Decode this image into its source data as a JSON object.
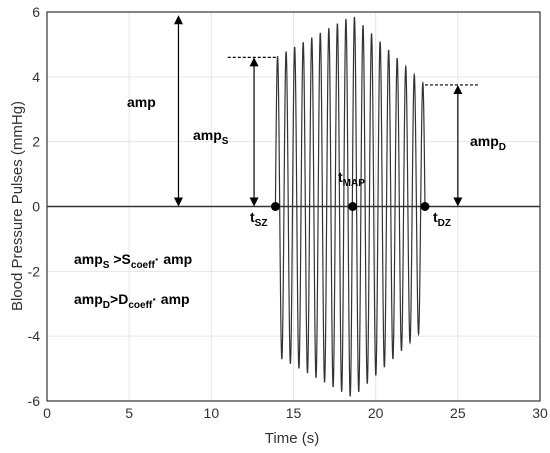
{
  "chart_data": {
    "type": "line",
    "title": "",
    "xlabel": "Time (s)",
    "ylabel": "Blood Pressure Pulses (mmHg)",
    "xlim": [
      0,
      30
    ],
    "ylim": [
      -6,
      6
    ],
    "x_ticks": [
      "0",
      "5",
      "10",
      "15",
      "20",
      "25",
      "30"
    ],
    "y_ticks": [
      "-6",
      "-4",
      "-2",
      "0",
      "2",
      "4",
      "6"
    ],
    "grid": true,
    "series": [
      {
        "signal": "oscillometric pulses",
        "x_start": 13.9,
        "x_end": 23,
        "peak_x": 18.6,
        "peak_amplitude": 5.9,
        "start_amplitude": 4.6,
        "end_amplitude": 3.75,
        "cycles": 17.5,
        "color": "#333333"
      }
    ],
    "annotations": {
      "amp": {
        "main": "amp",
        "x": 8,
        "y_from": 0,
        "y_to": 5.9
      },
      "amp_s": {
        "main": "amp",
        "sub": "S",
        "x": 12.6,
        "y_from": 0,
        "y_to": 4.6,
        "dash_from_x": 11,
        "dash_to_x": 14
      },
      "amp_d": {
        "main": "amp",
        "sub": "D",
        "x": 25,
        "y_from": 0,
        "y_to": 3.75,
        "dash_from_x": 23,
        "dash_to_x": 26.3
      },
      "t_sz": {
        "main": "t",
        "sub": "SZ",
        "x": 13.9,
        "y": 0
      },
      "t_map": {
        "main": "t",
        "sub": "MAP",
        "x": 18.6,
        "y": 0
      },
      "t_dz": {
        "main": "t",
        "sub": "DZ",
        "x": 23,
        "y": 0
      }
    },
    "formulas": [
      {
        "a": "amp",
        "a_sub": "S",
        "op": " >",
        "b": "S",
        "b_sub": "coeff",
        "c": "· amp"
      },
      {
        "a": "amp",
        "a_sub": "D",
        "op": ">",
        "b": "D",
        "b_sub": "coeff",
        "c": "· amp"
      }
    ]
  }
}
